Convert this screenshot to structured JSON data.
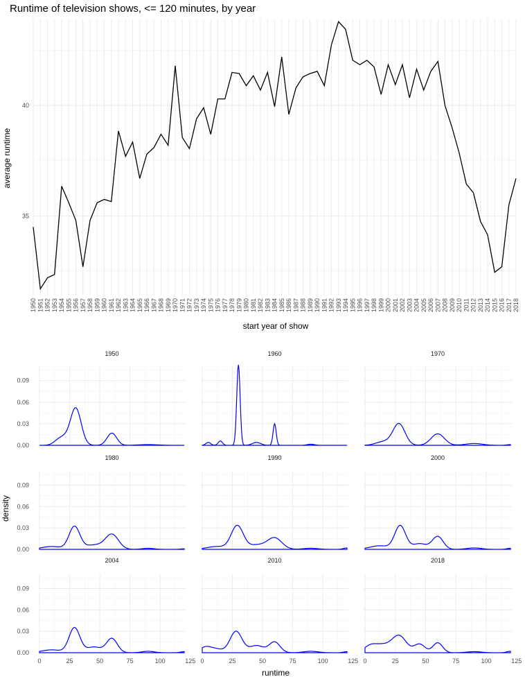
{
  "chart_data": [
    {
      "type": "line",
      "title": "Runtime of television shows, <= 120 minutes, by year",
      "xlabel": "start year of show",
      "ylabel": "average runtime",
      "y_ticks": [
        35,
        40
      ],
      "ylim": [
        31.4,
        43.9
      ],
      "grid": true,
      "x": [
        1950,
        1951,
        1952,
        1953,
        1954,
        1955,
        1956,
        1957,
        1958,
        1959,
        1960,
        1961,
        1962,
        1963,
        1964,
        1965,
        1966,
        1967,
        1968,
        1969,
        1970,
        1971,
        1972,
        1973,
        1974,
        1975,
        1976,
        1977,
        1978,
        1979,
        1980,
        1981,
        1982,
        1983,
        1984,
        1985,
        1986,
        1987,
        1988,
        1989,
        1990,
        1991,
        1992,
        1993,
        1994,
        1995,
        1996,
        1997,
        1998,
        1999,
        2000,
        2001,
        2002,
        2003,
        2004,
        2005,
        2006,
        2007,
        2008,
        2009,
        2010,
        2011,
        2012,
        2013,
        2014,
        2015,
        2016,
        2017,
        2018
      ],
      "series": [
        {
          "color": "#000000",
          "values": [
            34.5,
            31.7,
            32.2,
            32.35,
            36.35,
            35.6,
            34.8,
            32.7,
            34.8,
            35.6,
            35.75,
            35.65,
            38.85,
            37.7,
            38.35,
            36.7,
            37.8,
            38.1,
            38.7,
            38.2,
            41.8,
            38.55,
            38.05,
            39.4,
            39.9,
            38.7,
            40.3,
            40.3,
            41.5,
            41.45,
            40.9,
            41.35,
            40.7,
            41.5,
            39.95,
            42.2,
            39.6,
            40.8,
            41.3,
            41.45,
            41.55,
            40.9,
            42.75,
            43.8,
            43.45,
            42.05,
            41.85,
            42.05,
            41.75,
            40.5,
            41.85,
            40.95,
            41.85,
            40.35,
            41.65,
            40.7,
            41.55,
            42.0,
            40.0,
            39.0,
            37.85,
            36.45,
            36.05,
            34.75,
            34.15,
            32.45,
            32.7,
            35.5,
            36.7
          ]
        }
      ]
    },
    {
      "type": "area",
      "subtype": "density-facets",
      "xlabel": "runtime",
      "ylabel": "density",
      "x_ticks": [
        0,
        25,
        50,
        75,
        100,
        125
      ],
      "y_ticks": [
        "0.00",
        "0.03",
        "0.06",
        "0.09"
      ],
      "xlim": [
        0,
        120
      ],
      "ylim": [
        0,
        0.11
      ],
      "grid": true,
      "line_color": "#0000ff",
      "facets": [
        {
          "label": "1950",
          "peaks": [
            [
              15,
              0.005,
              4
            ],
            [
              20,
              0.008,
              4
            ],
            [
              30,
              0.052,
              4.5
            ],
            [
              60,
              0.017,
              4
            ],
            [
              90,
              0.001,
              8
            ]
          ]
        },
        {
          "label": "1960",
          "peaks": [
            [
              5,
              0.004,
              2
            ],
            [
              15,
              0.006,
              1.8
            ],
            [
              30,
              0.112,
              1.4
            ],
            [
              45,
              0.004,
              3.5
            ],
            [
              60,
              0.03,
              1.3
            ],
            [
              90,
              0.0015,
              3
            ]
          ]
        },
        {
          "label": "1970",
          "peaks": [
            [
              15,
              0.005,
              6
            ],
            [
              28,
              0.03,
              5
            ],
            [
              60,
              0.016,
              5.5
            ],
            [
              90,
              0.0025,
              7
            ],
            [
              120,
              0.001,
              3
            ]
          ]
        },
        {
          "label": "1980",
          "peaks": [
            [
              10,
              0.004,
              8
            ],
            [
              29,
              0.032,
              4.5
            ],
            [
              45,
              0.006,
              7
            ],
            [
              60,
              0.021,
              5.5
            ],
            [
              90,
              0.0015,
              5
            ],
            [
              120,
              0.0008,
              3
            ]
          ]
        },
        {
          "label": "1990",
          "peaks": [
            [
              12,
              0.004,
              8
            ],
            [
              29,
              0.033,
              5
            ],
            [
              45,
              0.006,
              7
            ],
            [
              60,
              0.016,
              6
            ],
            [
              90,
              0.0015,
              6
            ],
            [
              120,
              0.002,
              3
            ]
          ]
        },
        {
          "label": "2000",
          "peaks": [
            [
              12,
              0.005,
              8
            ],
            [
              29,
              0.033,
              4.5
            ],
            [
              45,
              0.008,
              6
            ],
            [
              60,
              0.018,
              4.5
            ],
            [
              90,
              0.002,
              6
            ],
            [
              120,
              0.0015,
              3
            ]
          ]
        },
        {
          "label": "2004",
          "peaks": [
            [
              10,
              0.004,
              8
            ],
            [
              29,
              0.035,
              4.5
            ],
            [
              45,
              0.008,
              6
            ],
            [
              60,
              0.02,
              4.5
            ],
            [
              90,
              0.002,
              5
            ],
            [
              120,
              0.0015,
              3
            ]
          ]
        },
        {
          "label": "2010",
          "peaks": [
            [
              2,
              0.006,
              4
            ],
            [
              10,
              0.006,
              6
            ],
            [
              28,
              0.03,
              5
            ],
            [
              45,
              0.01,
              6
            ],
            [
              60,
              0.015,
              4.5
            ],
            [
              90,
              0.002,
              6
            ],
            [
              120,
              0.0015,
              3
            ]
          ]
        },
        {
          "label": "2018",
          "peaks": [
            [
              4,
              0.009,
              5
            ],
            [
              14,
              0.01,
              6
            ],
            [
              28,
              0.024,
              6
            ],
            [
              45,
              0.012,
              4.5
            ],
            [
              60,
              0.014,
              4
            ],
            [
              90,
              0.0015,
              6
            ],
            [
              120,
              0.002,
              3
            ]
          ]
        }
      ]
    }
  ]
}
